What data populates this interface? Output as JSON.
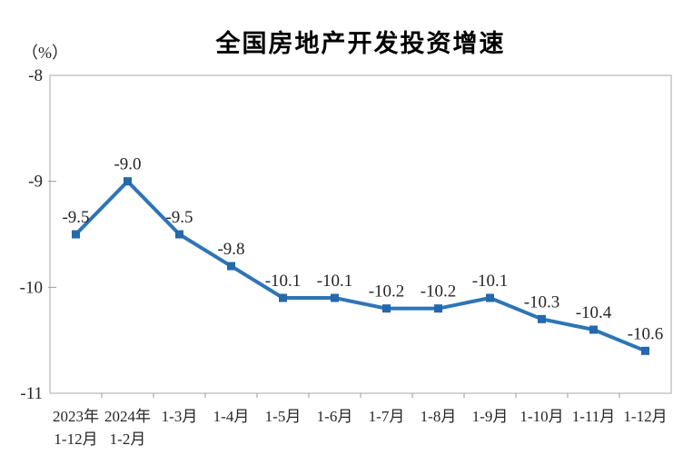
{
  "chart": {
    "line_color": "#2E75B6",
    "marker_color": "#2568AC",
    "axis_color": "#C6C6C6",
    "tick_color": "#9a9a9a",
    "label_color": "#262626",
    "title_color": "#000000"
  },
  "chart_data": {
    "type": "line",
    "title": "全国房地产开发投资增速",
    "ylabel": "（%）",
    "xlabel": "",
    "legend": "none",
    "grid": false,
    "ylim": [
      -11,
      -8
    ],
    "yticks": [
      -8,
      -9,
      -10,
      -11
    ],
    "ytick_labels": [
      "-8",
      "-9",
      "-10",
      "-11"
    ],
    "categories": [
      "2023年\n1-12月",
      "2024年\n1-2月",
      "1-3月",
      "1-4月",
      "1-5月",
      "1-6月",
      "1-7月",
      "1-8月",
      "1-9月",
      "1-10月",
      "1-11月",
      "1-12月"
    ],
    "values": [
      -9.5,
      -9.0,
      -9.5,
      -9.8,
      -10.1,
      -10.1,
      -10.2,
      -10.2,
      -10.1,
      -10.3,
      -10.4,
      -10.6
    ],
    "data_labels": [
      "-9.5",
      "-9.0",
      "-9.5",
      "-9.8",
      "-10.1",
      "-10.1",
      "-10.2",
      "-10.2",
      "-10.1",
      "-10.3",
      "-10.4",
      "-10.6"
    ],
    "marker": "square",
    "series_name": "全国房地产开发投资增速"
  }
}
